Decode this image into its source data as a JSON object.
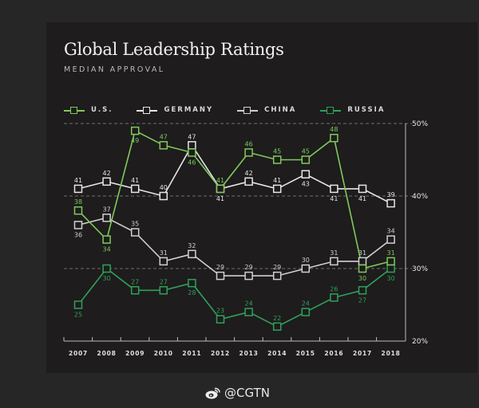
{
  "chart_data": {
    "type": "line",
    "title": "Global Leadership Ratings",
    "subtitle": "MEDIAN APPROVAL",
    "xlabel": "",
    "ylabel": "",
    "x": [
      "2007",
      "2008",
      "2009",
      "2010",
      "2011",
      "2012",
      "2013",
      "2014",
      "2015",
      "2016",
      "2017",
      "2018"
    ],
    "ylim": [
      20,
      50
    ],
    "yticks": [
      {
        "value": 50,
        "label": "50%"
      },
      {
        "value": 40,
        "label": "40%"
      },
      {
        "value": 30,
        "label": "30%"
      },
      {
        "value": 20,
        "label": "20%"
      }
    ],
    "grid": "dashed horizontal at 30%, 40%, 50%",
    "legend_position": "top",
    "series": [
      {
        "name": "U.S.",
        "color": "#7fc95b",
        "values": [
          38,
          34,
          49,
          47,
          46,
          41,
          46,
          45,
          45,
          48,
          30,
          31
        ],
        "label_pos": [
          "above",
          "below",
          "below",
          "above",
          "below",
          "above",
          "above",
          "above",
          "above",
          "above",
          "below",
          "above"
        ]
      },
      {
        "name": "GERMANY",
        "color": "#e6e6e6",
        "values": [
          41,
          42,
          41,
          40,
          47,
          41,
          42,
          41,
          43,
          41,
          41,
          39
        ],
        "label_pos": [
          "above",
          "above",
          "above",
          "above",
          "above",
          "below",
          "above",
          "above",
          "below",
          "below",
          "below",
          "above"
        ]
      },
      {
        "name": "CHINA",
        "color": "#d0d0d0",
        "values": [
          36,
          37,
          35,
          31,
          32,
          29,
          29,
          29,
          30,
          31,
          31,
          34
        ],
        "label_pos": [
          "below",
          "above",
          "above",
          "above",
          "above",
          "above",
          "above",
          "above",
          "above",
          "above",
          "above",
          "above"
        ]
      },
      {
        "name": "RUSSIA",
        "color": "#2fa05a",
        "values": [
          25,
          30,
          27,
          27,
          28,
          23,
          24,
          22,
          24,
          26,
          27,
          30
        ],
        "label_pos": [
          "below",
          "below",
          "above",
          "above",
          "below",
          "above",
          "above",
          "above",
          "above",
          "above",
          "below",
          "below"
        ]
      }
    ]
  },
  "footer": {
    "handle": "@CGTN",
    "icon": "weibo-icon"
  }
}
